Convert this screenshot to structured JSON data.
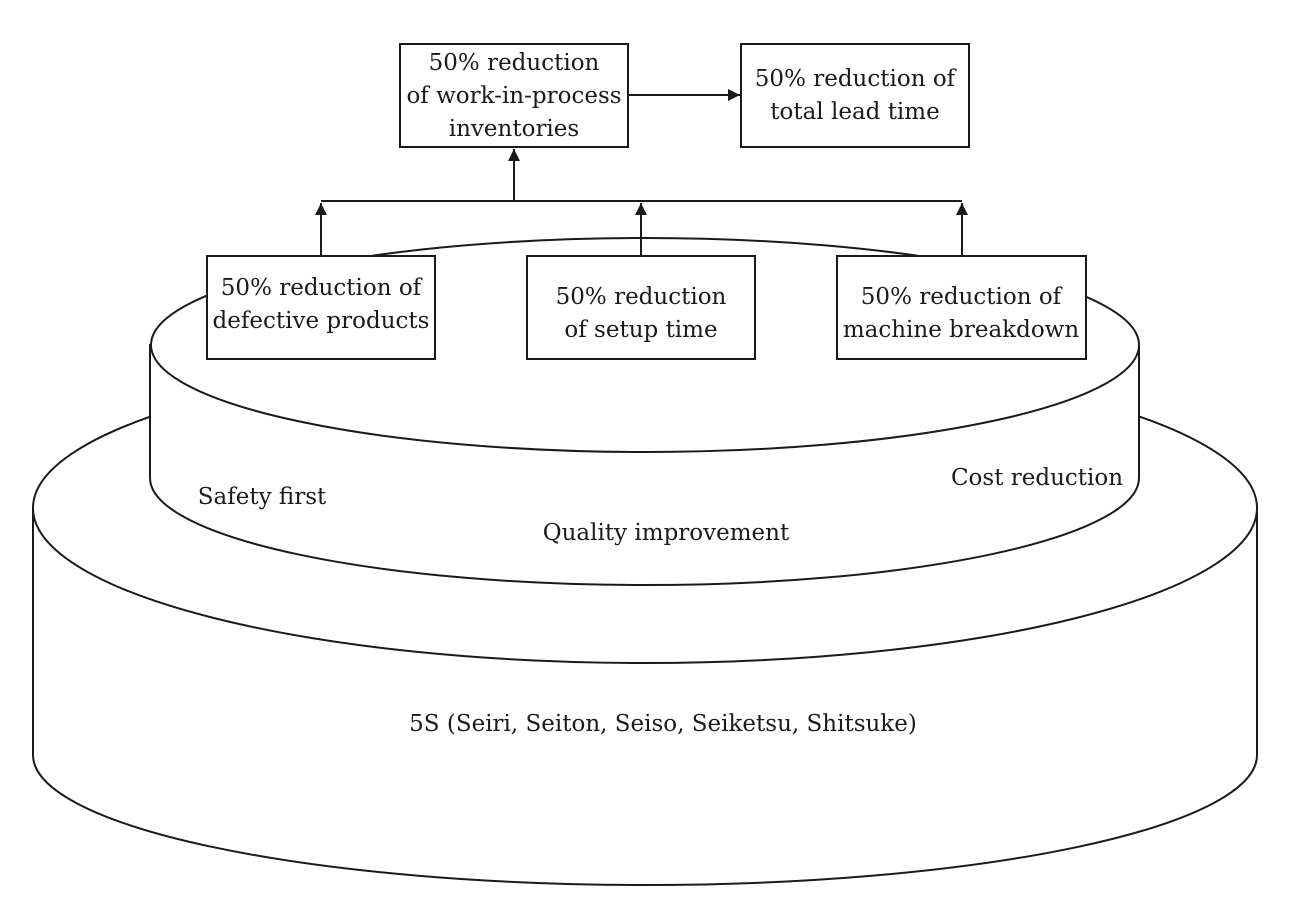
{
  "diagram": {
    "base_tier_label": "5S (Seiri, Seiton, Seiso, Seiketsu, Shitsuke)",
    "middle_tier": {
      "left_label": "Safety first",
      "center_label": "Quality improvement",
      "right_label": "Cost reduction"
    },
    "boxes": {
      "defective": [
        "50% reduction of",
        "defective products"
      ],
      "setup": [
        "50% reduction",
        "of setup time"
      ],
      "breakdown": [
        "50% reduction of",
        "machine breakdown"
      ],
      "wip": [
        "50% reduction",
        "of work-in-process",
        "inventories"
      ],
      "lead_time": [
        "50% reduction of",
        "total lead time"
      ]
    },
    "connections": [
      {
        "from": "defective",
        "to": "wip"
      },
      {
        "from": "setup",
        "to": "wip"
      },
      {
        "from": "breakdown",
        "to": "wip"
      },
      {
        "from": "wip",
        "to": "lead_time"
      }
    ]
  }
}
